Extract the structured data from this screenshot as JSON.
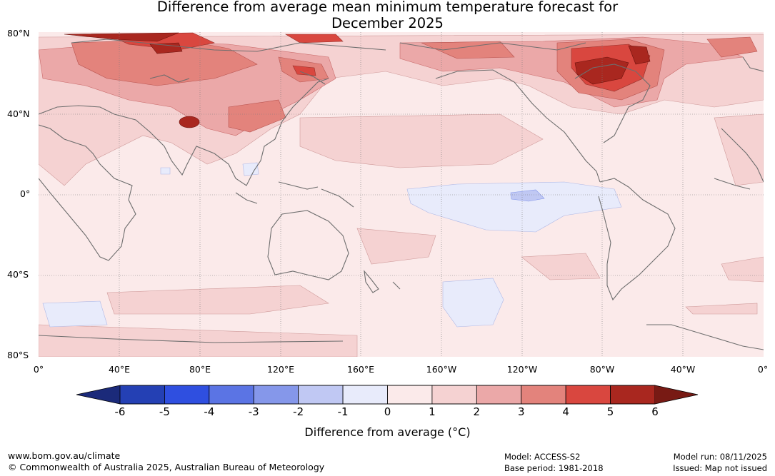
{
  "title_line1": "Difference from average mean minimum temperature forecast for",
  "title_line2": "December 2025",
  "lat_labels": [
    "80°N",
    "40°N",
    "0°",
    "40°S",
    "80°S"
  ],
  "lon_labels": [
    "0°",
    "40°E",
    "80°E",
    "120°E",
    "160°E",
    "160°W",
    "120°W",
    "80°W",
    "40°W",
    "0°"
  ],
  "colorbar": {
    "ticks": [
      "-6",
      "-5",
      "-4",
      "-3",
      "-2",
      "-1",
      "0",
      "1",
      "2",
      "3",
      "4",
      "5",
      "6"
    ],
    "label": "Difference from average (°C)",
    "colors": [
      "#1b2a7a",
      "#2440b4",
      "#2f4fe0",
      "#5b74e4",
      "#8597ea",
      "#c0c8f3",
      "#e8ebfb",
      "#fbeaea",
      "#f5d2d2",
      "#eba8a8",
      "#e3837c",
      "#d9473f",
      "#a9271f",
      "#781a14"
    ]
  },
  "footer": {
    "url": "www.bom.gov.au/climate",
    "copyright": "© Commonwealth of Australia 2025, Australian Bureau of Meteorology",
    "model": "Model: ACCESS-S2",
    "base_period": "Base period: 1981-2018",
    "model_run": "Model run: 08/11/2025",
    "issued": "Issued: Map not issued"
  }
}
